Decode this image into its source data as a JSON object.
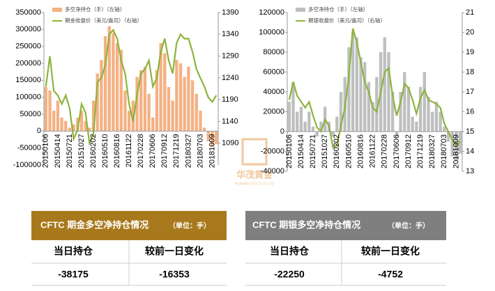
{
  "chart_data": [
    {
      "type": "combo",
      "categories": [
        "20150106",
        null,
        null,
        "20150414",
        null,
        null,
        "20150721",
        null,
        null,
        "20151027",
        null,
        null,
        "20160202",
        null,
        null,
        "20160510",
        null,
        null,
        "20160816",
        null,
        null,
        "20161122",
        null,
        null,
        "20170228",
        null,
        null,
        "20170606",
        null,
        null,
        "20170912",
        null,
        null,
        "20171219",
        null,
        null,
        "20180327",
        null,
        null,
        "20180703",
        null,
        null,
        "20181009",
        null
      ],
      "series": [
        {
          "name": "多空净持仓（手）（左轴）",
          "color": "#f4b183",
          "values": [
            130000,
            120000,
            60000,
            90000,
            40000,
            30000,
            10000,
            20000,
            40000,
            60000,
            30000,
            10000,
            90000,
            170000,
            210000,
            280000,
            310000,
            290000,
            260000,
            240000,
            120000,
            60000,
            90000,
            160000,
            180000,
            190000,
            110000,
            40000,
            180000,
            260000,
            230000,
            130000,
            90000,
            210000,
            200000,
            160000,
            190000,
            150000,
            110000,
            60000,
            10000,
            -30000,
            -45000,
            -38175
          ]
        },
        {
          "name": "期金收盘价（美元/盎司）（右轴）",
          "color": "#8db33a",
          "axis": "y2",
          "values": [
            1220,
            1290,
            1210,
            1200,
            1180,
            1200,
            1170,
            1100,
            1120,
            1180,
            1160,
            1090,
            1110,
            1230,
            1240,
            1270,
            1340,
            1350,
            1330,
            1280,
            1250,
            1180,
            1140,
            1200,
            1250,
            1260,
            1280,
            1220,
            1240,
            1300,
            1330,
            1280,
            1250,
            1320,
            1340,
            1330,
            1330,
            1300,
            1260,
            1240,
            1220,
            1195,
            1185,
            1200
          ]
        }
      ],
      "ylim": [
        -100000,
        350000
      ],
      "yticks": [
        -100000,
        -50000,
        0,
        50000,
        100000,
        150000,
        200000,
        250000,
        300000,
        350000
      ],
      "y2lim": [
        1040,
        1390
      ],
      "y2ticks": [
        1090,
        1140,
        1190,
        1240,
        1290,
        1340,
        1390
      ]
    },
    {
      "type": "combo",
      "categories": [
        "20150106",
        null,
        null,
        "20150414",
        null,
        null,
        "20150721",
        null,
        null,
        "20151027",
        null,
        null,
        "20160202",
        null,
        null,
        "20160510",
        null,
        null,
        "20160816",
        null,
        null,
        "20161122",
        null,
        null,
        "20170228",
        null,
        null,
        "20170606",
        null,
        null,
        "20170912",
        null,
        null,
        "20171219",
        null,
        null,
        "20180327",
        null,
        null,
        "20180703",
        null,
        null,
        "20181009",
        null
      ],
      "series": [
        {
          "name": "多空净持仓（手）（左轴）",
          "color": "#bfbfbf",
          "values": [
            30000,
            50000,
            20000,
            25000,
            10000,
            20000,
            5000,
            -5000,
            10000,
            25000,
            10000,
            -5000,
            15000,
            40000,
            55000,
            85000,
            100000,
            95000,
            75000,
            70000,
            50000,
            30000,
            55000,
            80000,
            95000,
            80000,
            40000,
            -5000,
            40000,
            60000,
            45000,
            15000,
            10000,
            45000,
            60000,
            35000,
            20000,
            30000,
            20000,
            5000,
            -10000,
            -25000,
            -30000,
            -22250
          ]
        },
        {
          "name": "期银收盘价（美元/盎司）（右轴）",
          "color": "#8db33a",
          "axis": "y2",
          "values": [
            16.6,
            17.5,
            16.8,
            16.5,
            16.2,
            16.5,
            15.8,
            15.2,
            15.0,
            15.6,
            15.3,
            14.2,
            14.3,
            15.3,
            16.2,
            17.8,
            20.2,
            19.5,
            18.5,
            17.5,
            17.0,
            16.2,
            16.0,
            17.0,
            18.0,
            18.2,
            16.8,
            15.8,
            16.5,
            17.4,
            17.2,
            16.6,
            15.9,
            16.7,
            17.1,
            16.6,
            16.5,
            16.4,
            16.2,
            15.4,
            15.0,
            14.6,
            14.3,
            14.5
          ]
        }
      ],
      "ylim": [
        -40000,
        120000
      ],
      "yticks": [
        -40000,
        -20000,
        0,
        20000,
        40000,
        60000,
        80000,
        100000,
        120000
      ],
      "y2lim": [
        13,
        21
      ],
      "y2ticks": [
        13,
        14,
        15,
        16,
        17,
        18,
        19,
        20,
        21
      ]
    }
  ],
  "watermark": {
    "name": "华茂黄金",
    "sub": "HUAMAO GOLD CO.LTD"
  },
  "tables": [
    {
      "title": "CFTC 期金多空净持仓情况",
      "unit": "（单位：手）",
      "headers": [
        "当日持仓",
        "较前一日变化"
      ],
      "values": [
        "-38175",
        "-16353"
      ]
    },
    {
      "title": "CFTC 期银多空净持仓情况",
      "unit": "（单位：手）",
      "headers": [
        "当日持仓",
        "较前一日变化"
      ],
      "values": [
        "-22250",
        "-4752"
      ]
    }
  ]
}
